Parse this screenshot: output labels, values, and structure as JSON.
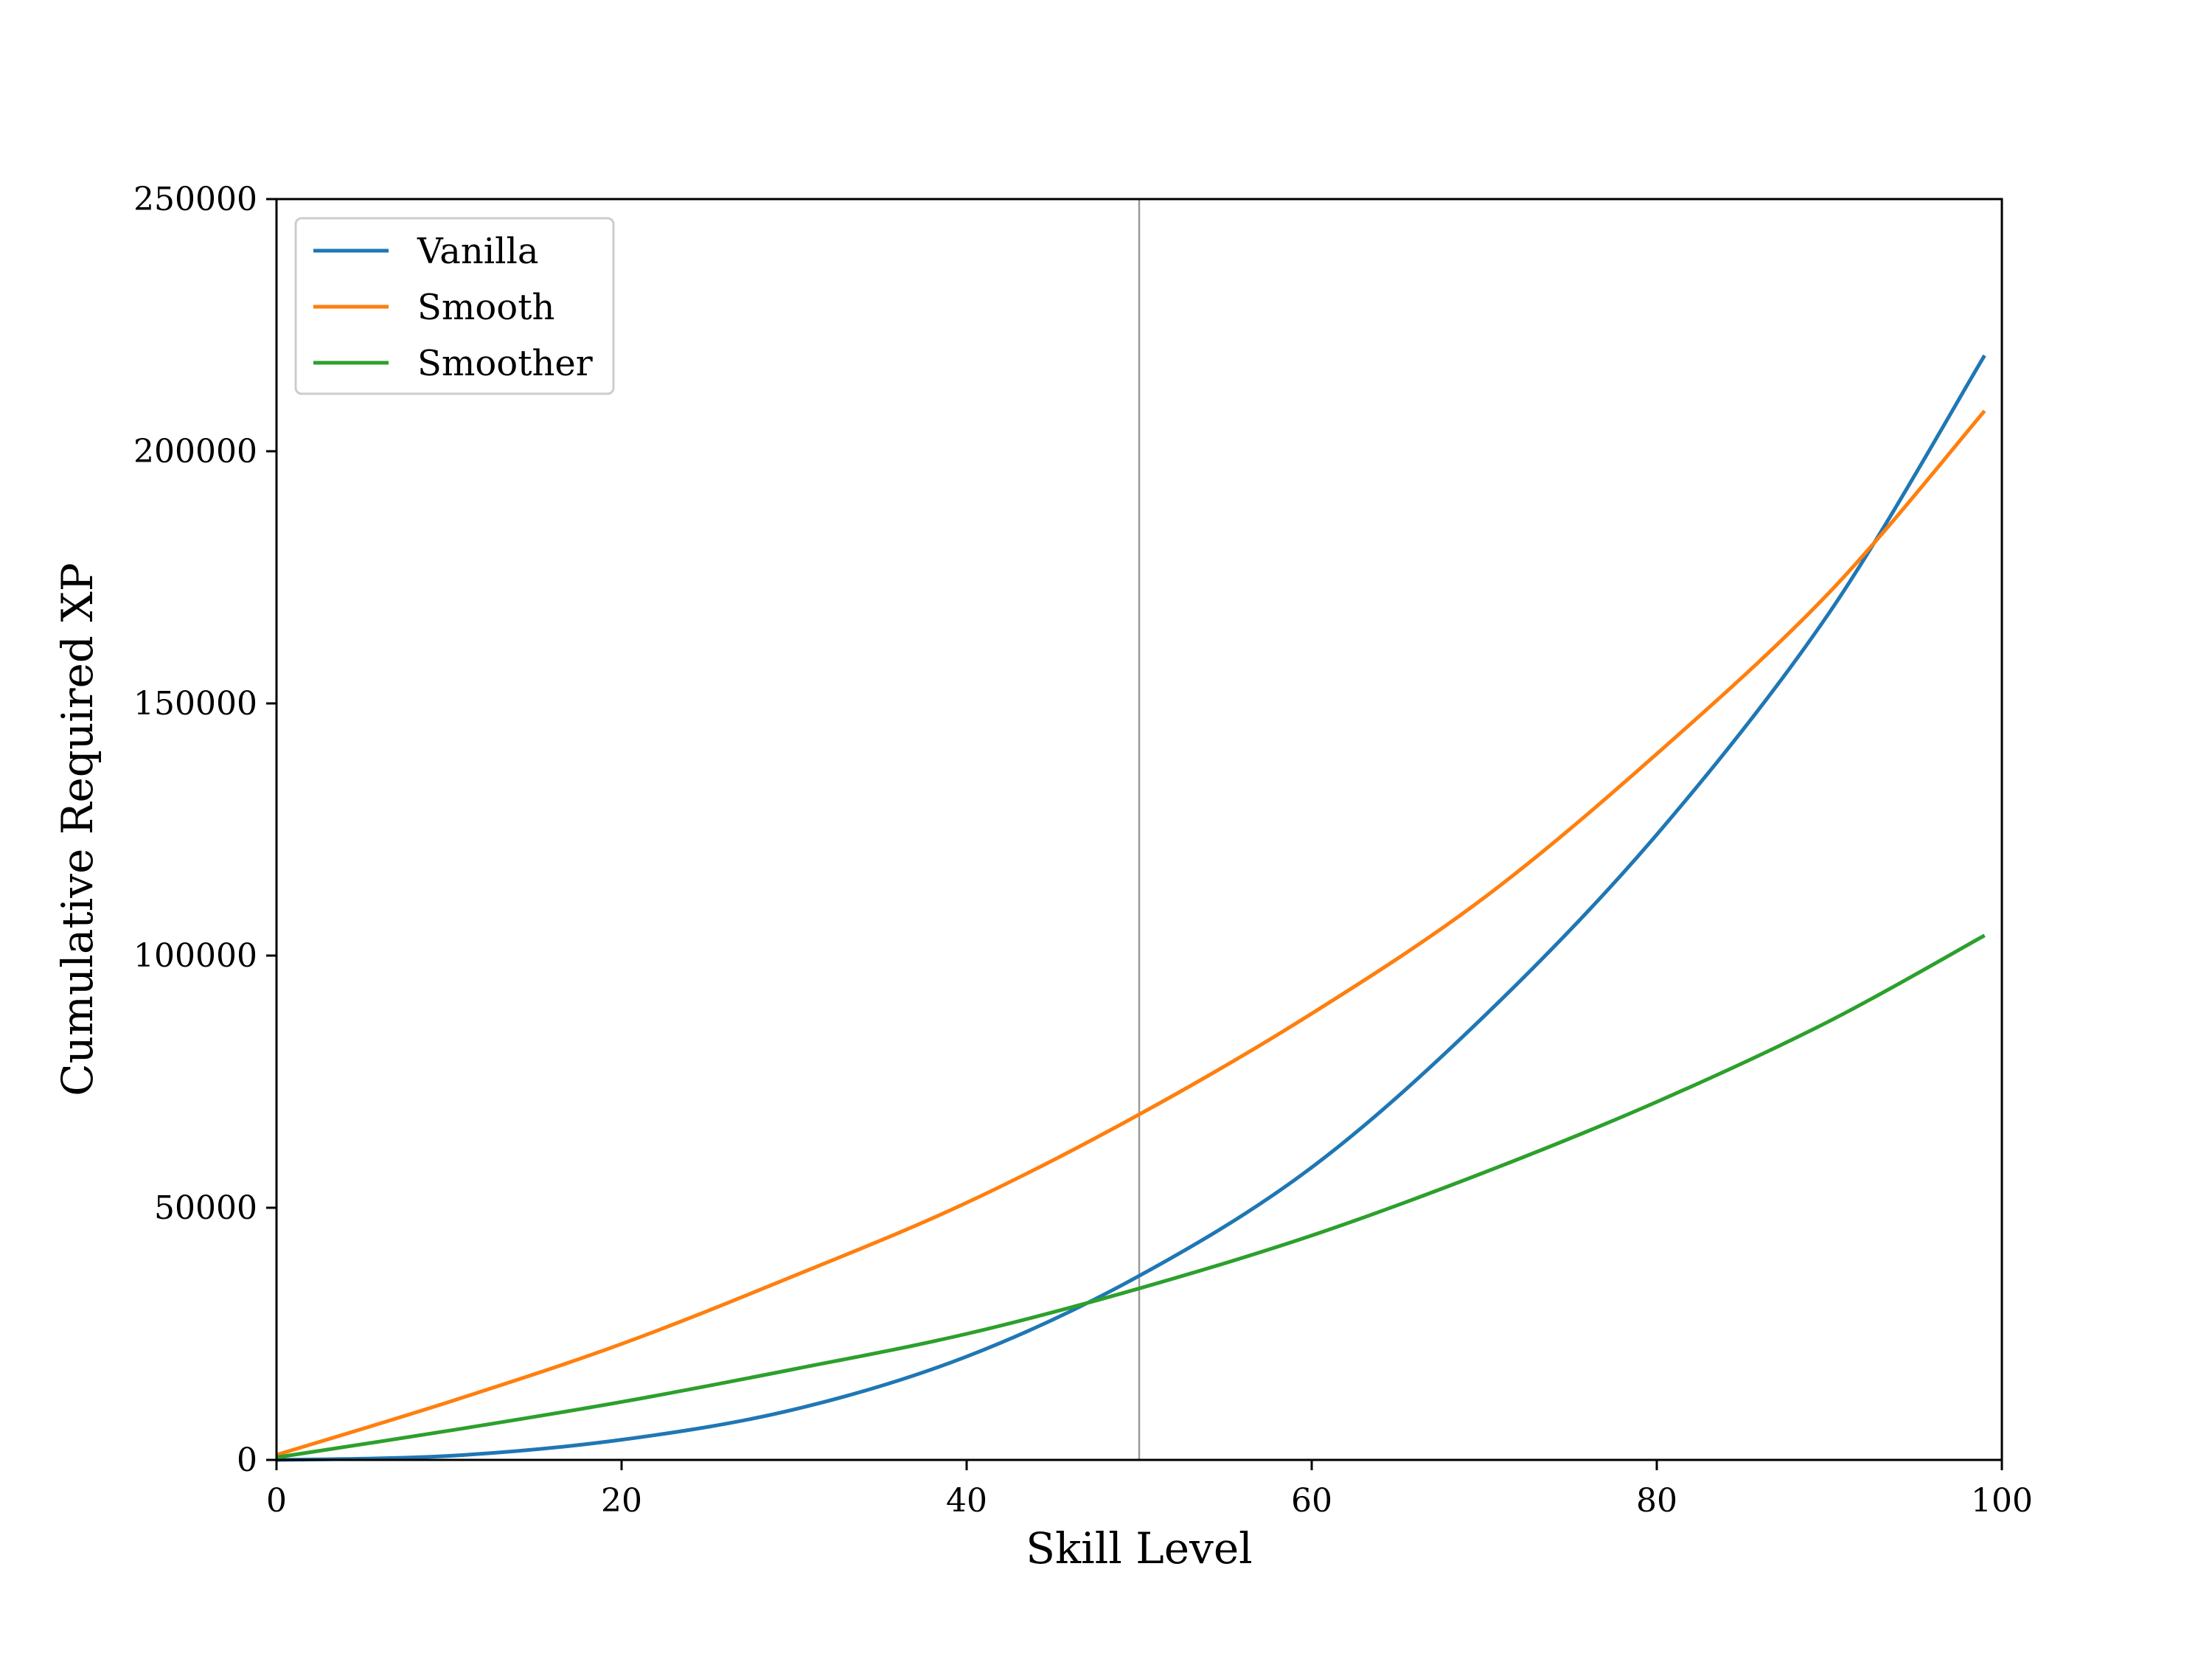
{
  "chart_data": {
    "type": "line",
    "xlabel": "Skill Level",
    "ylabel": "Cumulative Required XP",
    "xlim": [
      0,
      100
    ],
    "ylim": [
      0,
      250000
    ],
    "xticks": [
      0,
      20,
      40,
      60,
      80,
      100
    ],
    "yticks": [
      0,
      50000,
      100000,
      150000,
      200000,
      250000
    ],
    "xtick_labels": [
      "0",
      "20",
      "40",
      "60",
      "80",
      "100"
    ],
    "ytick_labels": [
      "0",
      "50000",
      "100000",
      "150000",
      "200000",
      "250000"
    ],
    "grid": false,
    "legend_position": "upper-left",
    "reference_line": {
      "x": 50,
      "color": "#999999"
    },
    "x": [
      0,
      10,
      20,
      30,
      40,
      50,
      60,
      70,
      80,
      90,
      99
    ],
    "series": [
      {
        "name": "Vanilla",
        "color": "#1f77b4",
        "values": [
          0,
          800,
          4000,
          10000,
          20500,
          36500,
          58000,
          88000,
          124000,
          168000,
          219000
        ]
      },
      {
        "name": "Smooth",
        "color": "#ff7f0e",
        "values": [
          1000,
          11500,
          23000,
          36500,
          51000,
          68500,
          88500,
          111500,
          140000,
          172000,
          208000
        ]
      },
      {
        "name": "Smoother",
        "color": "#2ca02c",
        "values": [
          500,
          5800,
          11500,
          18000,
          25000,
          34000,
          44500,
          57000,
          71000,
          87000,
          104000
        ]
      }
    ]
  }
}
